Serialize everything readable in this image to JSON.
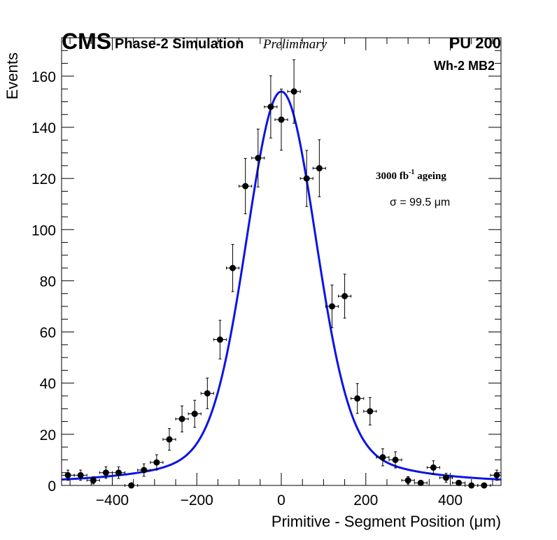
{
  "header": {
    "cms": "CMS",
    "phase": "Phase-2 Simulation",
    "preliminary": "Preliminary",
    "pileup": "PU 200",
    "station": "Wh-2 MB2",
    "ageing_main": "3000 fb",
    "ageing_sup": "-1",
    "ageing_tail": " ageing",
    "sigma": "σ = 99.5 μm"
  },
  "colors": {
    "fit": "#0a14e6",
    "points": "#000000",
    "axis": "#000000"
  },
  "chart_data": {
    "type": "scatter",
    "title": "",
    "xlabel": "Primitive - Segment Position (μm)",
    "ylabel": "Events",
    "xlim": [
      -520,
      520
    ],
    "ylim": [
      0,
      175
    ],
    "x_ticks": [
      -400,
      -200,
      0,
      200,
      400
    ],
    "x_tick_labels": [
      "−400",
      "−200",
      "0",
      "200",
      "400"
    ],
    "y_ticks": [
      0,
      20,
      40,
      60,
      80,
      100,
      120,
      140,
      160
    ],
    "y_tick_labels": [
      "0",
      "20",
      "40",
      "60",
      "80",
      "100",
      "120",
      "140",
      "160"
    ],
    "bin_half_width": 15,
    "series": [
      {
        "name": "Simulation",
        "x": [
          -505,
          -475,
          -445,
          -415,
          -385,
          -355,
          -325,
          -295,
          -265,
          -235,
          -205,
          -175,
          -145,
          -115,
          -85,
          -55,
          -25,
          0,
          30,
          60,
          90,
          120,
          150,
          180,
          210,
          240,
          270,
          300,
          330,
          360,
          390,
          420,
          450,
          480,
          510
        ],
        "y": [
          4,
          4,
          2,
          5,
          5,
          0,
          6,
          9,
          18,
          26,
          28,
          36,
          57,
          85,
          117,
          128,
          148,
          143,
          154,
          120,
          124,
          70,
          74,
          34,
          29,
          11,
          10,
          2,
          1,
          7,
          3,
          1,
          0,
          0,
          4
        ]
      },
      {
        "name": "Fit",
        "function": "gaussian + pseudo-voigt",
        "mean": 0,
        "peak": 154,
        "sigma_um": 99.5
      }
    ]
  }
}
